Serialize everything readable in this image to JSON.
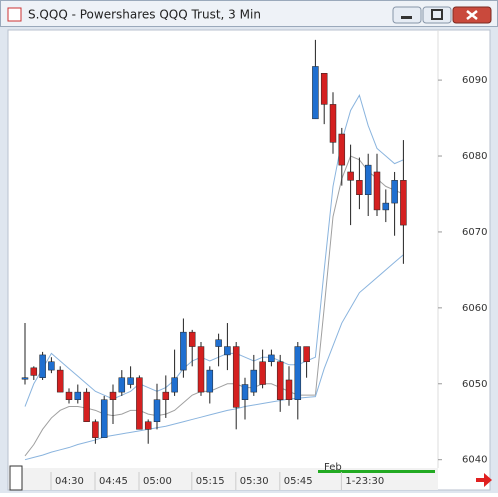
{
  "window": {
    "title": "S.QQQ - Powershares QQQ Trust, 3 Min"
  },
  "chart_data": {
    "type": "candlestick",
    "categories": [
      null,
      null,
      null,
      null,
      null,
      "04:30",
      null,
      null,
      null,
      null,
      "04:45",
      null,
      null,
      null,
      null,
      "05:00",
      null,
      null,
      null,
      null,
      null,
      "05:15",
      null,
      null,
      null,
      null,
      "05:30",
      null,
      null,
      null,
      null,
      "05:45",
      null,
      null,
      null,
      null,
      null,
      null,
      "1-23:30",
      null,
      null,
      null,
      null,
      null
    ],
    "annotations": [
      "Feb"
    ],
    "open": [
      6050.6,
      6052.1,
      6050.8,
      6051.8,
      6051.8,
      6048.9,
      6047.9,
      6048.9,
      6045.0,
      6042.9,
      6048.9,
      6048.9,
      6049.9,
      6050.8,
      6045.0,
      6045.0,
      6048.9,
      6048.9,
      6051.8,
      6056.8,
      6054.9,
      6048.9,
      6054.9,
      6053.8,
      6054.9,
      6047.9,
      6048.9,
      6052.9,
      6052.9,
      6052.9,
      6050.5,
      6047.9,
      6054.9,
      6084.9,
      6090.9,
      6086.8,
      6082.9,
      6077.9,
      6076.8,
      6074.9,
      6077.9,
      6072.9,
      6073.8,
      6076.8
    ],
    "close": [
      6050.8,
      6051.1,
      6053.8,
      6052.9,
      6048.9,
      6047.9,
      6048.9,
      6045.0,
      6042.9,
      6047.9,
      6047.9,
      6050.8,
      6050.8,
      6044.0,
      6044.0,
      6047.9,
      6047.9,
      6050.8,
      6056.8,
      6054.9,
      6048.9,
      6051.8,
      6055.8,
      6054.9,
      6046.9,
      6049.9,
      6051.8,
      6049.9,
      6053.8,
      6047.9,
      6047.9,
      6054.9,
      6052.9,
      6091.8,
      6086.8,
      6081.8,
      6078.8,
      6076.8,
      6074.9,
      6078.8,
      6072.9,
      6073.8,
      6076.8,
      6070.9
    ],
    "high": [
      6058.0,
      6052.3,
      6054.2,
      6053.5,
      6052.3,
      6049.4,
      6049.9,
      6049.4,
      6045.3,
      6048.4,
      6049.9,
      6051.8,
      6052.3,
      6051.1,
      6045.3,
      6050.0,
      6051.1,
      6054.5,
      6058.6,
      6057.1,
      6055.5,
      6052.3,
      6056.6,
      6058.0,
      6055.5,
      6050.8,
      6053.8,
      6054.5,
      6054.5,
      6053.8,
      6052.3,
      6055.5,
      6054.9,
      6095.3,
      6090.9,
      6088.4,
      6083.7,
      6081.5,
      6079.8,
      6080.3,
      6080.3,
      6075.6,
      6077.9,
      6082.1
    ],
    "low": [
      6049.9,
      6050.5,
      6050.5,
      6051.4,
      6048.9,
      6047.4,
      6047.4,
      6045.0,
      6042.1,
      6042.9,
      6044.7,
      6048.4,
      6049.4,
      6044.0,
      6042.1,
      6044.0,
      6045.5,
      6048.4,
      6050.8,
      6052.3,
      6048.4,
      6047.4,
      6052.3,
      6051.8,
      6044.0,
      6045.3,
      6048.4,
      6049.4,
      6052.3,
      6046.3,
      6047.1,
      6045.3,
      6050.8,
      6084.9,
      6084.2,
      6080.3,
      6076.1,
      6070.9,
      6073.0,
      6072.1,
      6072.1,
      6071.3,
      6069.5,
      6065.8
    ],
    "up_color": "#1f6fd0",
    "down_color": "#d42020",
    "series": [
      {
        "color": "#8ab4de",
        "values": [
          6047,
          6050,
          6052,
          6054,
          6053,
          6052,
          6051,
          6050,
          6049,
          6048.5,
          6048,
          6048.5,
          6049,
          6050,
          6049.5,
          6049,
          6049.5,
          6050.5,
          6052,
          6053,
          6053.5,
          6053,
          6053.5,
          6054,
          6054,
          6053.5,
          6053,
          6053.5,
          6053.5,
          6053,
          6052.5,
          6052.5,
          6053,
          6053.5,
          6065,
          6076,
          6082,
          6086,
          6088,
          6084,
          6081,
          6080,
          6079,
          6079.5
        ]
      },
      {
        "color": "#a0a0a0",
        "values": [
          6040.5,
          6042,
          6044,
          6045.5,
          6046.5,
          6047,
          6047,
          6046.8,
          6046.5,
          6046,
          6045.8,
          6046,
          6046.5,
          6046.5,
          6046,
          6045.8,
          6046,
          6046.5,
          6047.5,
          6048.5,
          6049,
          6049,
          6049.5,
          6050,
          6050,
          6049.5,
          6049.5,
          6050,
          6050,
          6049.5,
          6049,
          6048.5,
          6048.5,
          6048.5,
          6060,
          6072,
          6077,
          6080,
          6079.5,
          6078,
          6077,
          6076,
          6075.5,
          6075
        ]
      },
      {
        "color": "#8ab4de",
        "values": [
          6040,
          6040.3,
          6040.6,
          6041,
          6041.3,
          6041.6,
          6042,
          6042.3,
          6042.6,
          6043,
          6043.2,
          6043.4,
          6043.6,
          6043.8,
          6044,
          6044.2,
          6044.4,
          6044.7,
          6045,
          6045.3,
          6045.6,
          6045.9,
          6046.2,
          6046.5,
          6046.7,
          6047,
          6047.2,
          6047.4,
          6047.6,
          6047.8,
          6048,
          6048.1,
          6048.2,
          6048.3,
          6052,
          6055,
          6058,
          6060,
          6062,
          6063,
          6064,
          6065,
          6066,
          6067
        ]
      }
    ],
    "ylim": [
      6039.3,
      6096.6
    ],
    "yticks": [
      6040,
      6050,
      6060,
      6070,
      6080,
      6090
    ]
  }
}
